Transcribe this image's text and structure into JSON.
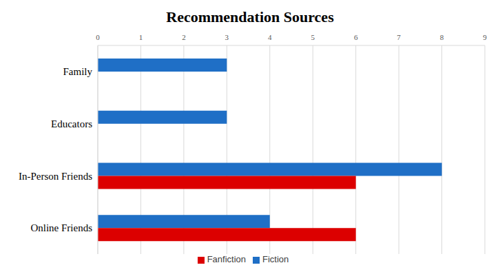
{
  "chart_data": {
    "type": "bar",
    "title": "Recommendation Sources",
    "orientation": "horizontal",
    "categories": [
      "Family",
      "Educators",
      "In-Person Friends",
      "Online Friends"
    ],
    "series": [
      {
        "name": "Fiction",
        "color": "#1f6fc6",
        "values": [
          3,
          3,
          8,
          4
        ]
      },
      {
        "name": "Fanfiction",
        "color": "#dc0000",
        "values": [
          0,
          0,
          6,
          6
        ]
      }
    ],
    "xlim": [
      0,
      9
    ],
    "xticks": [
      0,
      1,
      2,
      3,
      4,
      5,
      6,
      7,
      8,
      9
    ],
    "grid": true,
    "legend": "bottom"
  }
}
